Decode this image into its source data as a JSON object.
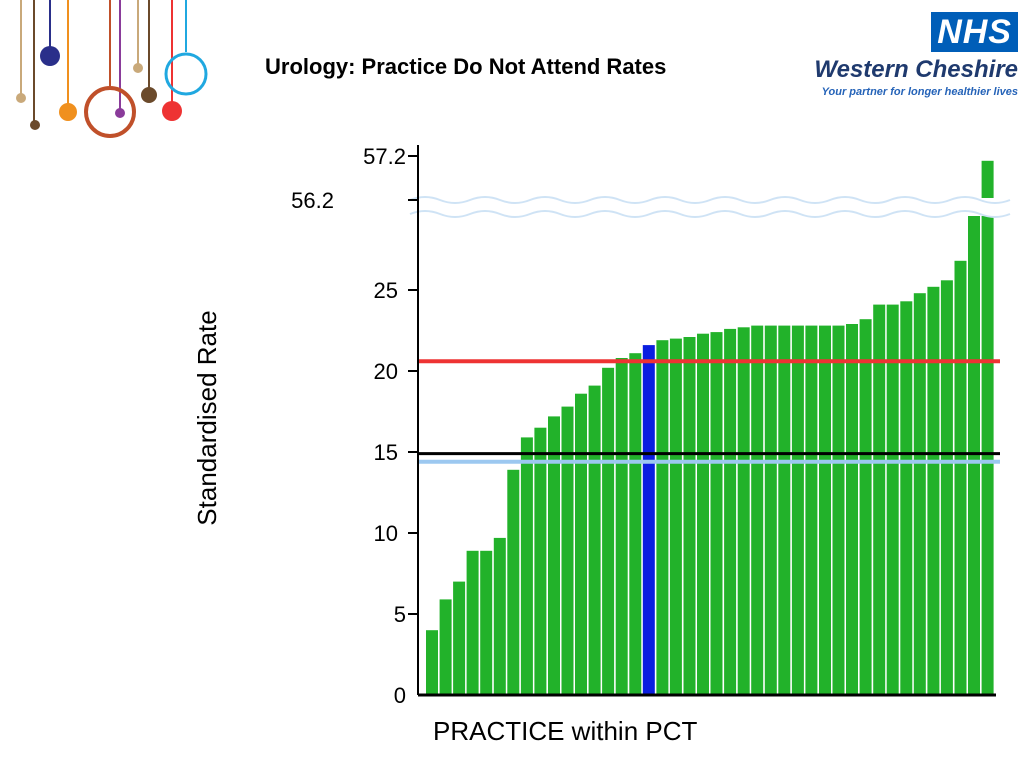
{
  "page": {
    "title": "Urology: Practice Do Not Attend Rates",
    "logo": {
      "badge": "NHS",
      "org": "Western Cheshire",
      "tagline": "Your partner for longer healthier lives"
    }
  },
  "colors": {
    "bar": "#22b22a",
    "highlight_bar": "#0a1ee0",
    "red_line": "#ee3333",
    "black_line": "#000000",
    "light_blue_line": "#9cc8f0",
    "brand_blue": "#005eb8"
  },
  "chart_data": {
    "type": "bar",
    "ylabel": "Standardised Rate",
    "xlabel": "PRACTICE within PCT",
    "y_axis": {
      "ticks": [
        0,
        5,
        10,
        15,
        20,
        25
      ],
      "break": {
        "from": 29,
        "to": 56.2
      },
      "upper_ticks": [
        {
          "label": "56.2",
          "value": 56.2
        },
        {
          "label": "57.2",
          "value": 57.2
        }
      ],
      "max": 57.2
    },
    "values": [
      4.0,
      5.9,
      7.0,
      8.9,
      8.9,
      9.7,
      13.9,
      15.9,
      16.5,
      17.2,
      17.8,
      18.6,
      19.1,
      20.2,
      20.8,
      21.1,
      21.6,
      21.9,
      22.0,
      22.1,
      22.3,
      22.4,
      22.6,
      22.7,
      22.8,
      22.8,
      22.8,
      22.8,
      22.8,
      22.8,
      22.8,
      22.9,
      23.2,
      24.1,
      24.1,
      24.3,
      24.8,
      25.2,
      25.6,
      26.8,
      56.1,
      57.0
    ],
    "highlight_index": 16,
    "reference_lines": [
      {
        "name": "red",
        "value": 20.6,
        "color": "#ee3333"
      },
      {
        "name": "black",
        "value": 14.9,
        "color": "#000000"
      },
      {
        "name": "light-blue",
        "value": 14.4,
        "color": "#9cc8f0"
      }
    ],
    "grid": false
  }
}
